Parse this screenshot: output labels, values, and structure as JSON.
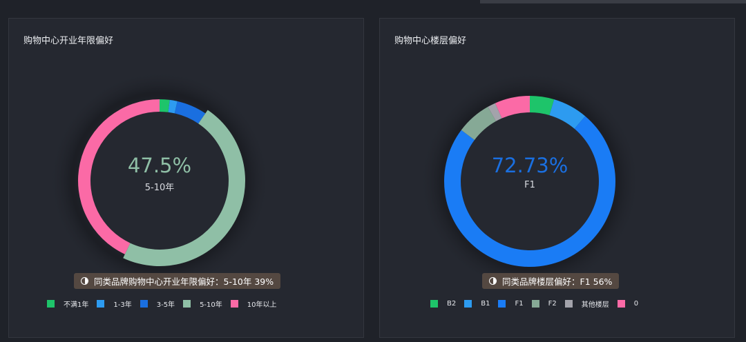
{
  "chart_data": [
    {
      "type": "donut",
      "title": "购物中心开业年限偏好",
      "center_value": "47.5%",
      "center_label": "5-10年",
      "center_color": "#8fbfa6",
      "categories": [
        "不满1年",
        "1-3年",
        "3-5年",
        "5-10年",
        "10年以上"
      ],
      "values": [
        2.0,
        1.5,
        6.0,
        47.5,
        43.0
      ],
      "colors": [
        "#1ec46a",
        "#2d9bf0",
        "#1a6fe0",
        "#8fbfa6",
        "#fb6aa6"
      ],
      "highlight": "5-10年",
      "note": "同类品牌购物中心开业年限偏好：5-10年 39%"
    },
    {
      "type": "donut",
      "title": "购物中心楼层偏好",
      "center_value": "72.73%",
      "center_label": "F1",
      "center_color": "#1a6fe0",
      "categories": [
        "B2",
        "B1",
        "F1",
        "F2",
        "其他楼层",
        "0"
      ],
      "values": [
        4.5,
        6.5,
        72.73,
        6.5,
        1.5,
        6.5
      ],
      "colors": [
        "#1ec46a",
        "#2d9bf0",
        "#1a7cf5",
        "#86a996",
        "#a3a3ab",
        "#fb6aa6"
      ],
      "highlight": "F1",
      "note": "同类品牌楼层偏好：F1 56%"
    }
  ],
  "colors": {
    "background": "#1f2229",
    "panel": "#252830",
    "note_background": "#544841"
  },
  "icons": {
    "note": "contrast-icon"
  }
}
